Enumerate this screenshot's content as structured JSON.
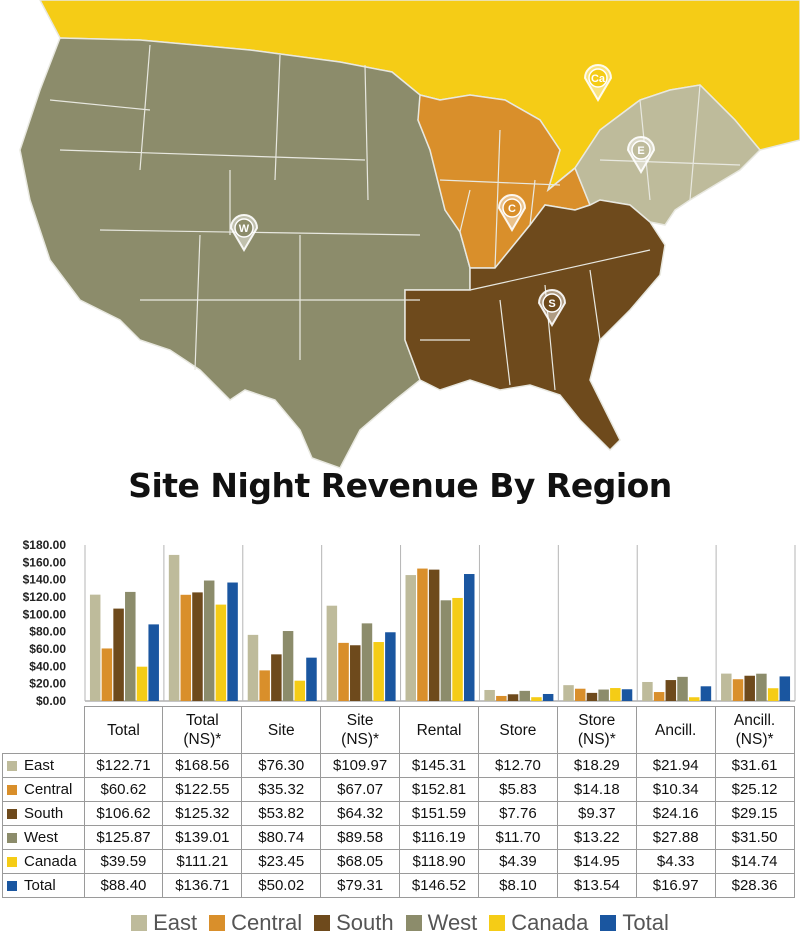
{
  "map": {
    "colors": {
      "canada": "#F5CC16",
      "west": "#8C8C6B",
      "central": "#D98F2B",
      "south": "#6E4A1C",
      "east": "#BEBB9B",
      "ocean": "#FFFFFF",
      "state_lines": "#E8E8E0"
    },
    "markers": [
      {
        "label": "Ca",
        "region": "canada"
      },
      {
        "label": "E",
        "region": "east"
      },
      {
        "label": "W",
        "region": "west"
      },
      {
        "label": "C",
        "region": "central"
      },
      {
        "label": "S",
        "region": "south"
      }
    ]
  },
  "title": "Site Night Revenue By Region",
  "chart_data": {
    "type": "bar",
    "categories": [
      "Total",
      "Total (NS)*",
      "Site",
      "Site (NS)*",
      "Rental",
      "Store",
      "Store (NS)*",
      "Ancill.",
      "Ancill. (NS)*"
    ],
    "category_lines": [
      [
        "Total"
      ],
      [
        "Total",
        "(NS)*"
      ],
      [
        "Site"
      ],
      [
        "Site",
        "(NS)*"
      ],
      [
        "Rental"
      ],
      [
        "Store"
      ],
      [
        "Store",
        "(NS)*"
      ],
      [
        "Ancill."
      ],
      [
        "Ancill.",
        "(NS)*"
      ]
    ],
    "yticks": [
      "$0.00",
      "$20.00",
      "$40.00",
      "$60.00",
      "$80.00",
      "$100.00",
      "$120.00",
      "$140.00",
      "$160.00",
      "$180.00"
    ],
    "ylim": [
      0,
      180
    ],
    "grid": false,
    "legend": "bottom",
    "series": [
      {
        "name": "East",
        "color": "#BEBB9B",
        "values": [
          122.71,
          168.56,
          76.3,
          109.97,
          145.31,
          12.7,
          18.29,
          21.94,
          31.61
        ],
        "labels": [
          "$122.71",
          "$168.56",
          "$76.30",
          "$109.97",
          "$145.31",
          "$12.70",
          "$18.29",
          "$21.94",
          "$31.61"
        ]
      },
      {
        "name": "Central",
        "color": "#D98F2B",
        "values": [
          60.62,
          122.55,
          35.32,
          67.07,
          152.81,
          5.83,
          14.18,
          10.34,
          25.12
        ],
        "labels": [
          "$60.62",
          "$122.55",
          "$35.32",
          "$67.07",
          "$152.81",
          "$5.83",
          "$14.18",
          "$10.34",
          "$25.12"
        ]
      },
      {
        "name": "South",
        "color": "#6E4A1C",
        "values": [
          106.62,
          125.32,
          53.82,
          64.32,
          151.59,
          7.76,
          9.37,
          24.16,
          29.15
        ],
        "labels": [
          "$106.62",
          "$125.32",
          "$53.82",
          "$64.32",
          "$151.59",
          "$7.76",
          "$9.37",
          "$24.16",
          "$29.15"
        ]
      },
      {
        "name": "West",
        "color": "#8C8C6B",
        "values": [
          125.87,
          139.01,
          80.74,
          89.58,
          116.19,
          11.7,
          13.22,
          27.88,
          31.5
        ],
        "labels": [
          "$125.87",
          "$139.01",
          "$80.74",
          "$89.58",
          "$116.19",
          "$11.70",
          "$13.22",
          "$27.88",
          "$31.50"
        ]
      },
      {
        "name": "Canada",
        "color": "#F5CC16",
        "values": [
          39.59,
          111.21,
          23.45,
          68.05,
          118.9,
          4.39,
          14.95,
          4.33,
          14.74
        ],
        "labels": [
          "$39.59",
          "$111.21",
          "$23.45",
          "$68.05",
          "$118.90",
          "$4.39",
          "$14.95",
          "$4.33",
          "$14.74"
        ]
      },
      {
        "name": "Total",
        "color": "#1A56A0",
        "values": [
          88.4,
          136.71,
          50.02,
          79.31,
          146.52,
          8.1,
          13.54,
          16.97,
          28.36
        ],
        "labels": [
          "$88.40",
          "$136.71",
          "$50.02",
          "$79.31",
          "$146.52",
          "$8.10",
          "$13.54",
          "$16.97",
          "$28.36"
        ]
      }
    ]
  }
}
